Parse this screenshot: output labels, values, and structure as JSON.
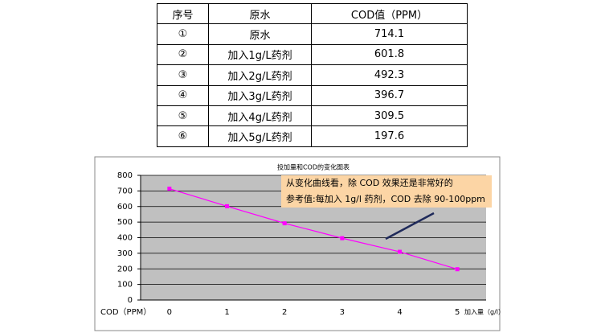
{
  "table": {
    "header": [
      "序号",
      "原水",
      "COD值（PPM）"
    ],
    "rows": [
      [
        "①",
        "原水",
        "714.1"
      ],
      [
        "②",
        "加入1g/L药剂",
        "601.8"
      ],
      [
        "③",
        "加入2g/L药剂",
        "492.3"
      ],
      [
        "④",
        "加入3g/L药剂",
        "396.7"
      ],
      [
        "⑤",
        "加入4g/L药剂",
        "309.5"
      ],
      [
        "⑥",
        "加入5g/L药剂",
        "197.6"
      ]
    ]
  },
  "chart_data": {
    "type": "line",
    "title": "投加量和COD的变化图表",
    "x": [
      0,
      1,
      2,
      3,
      4,
      5
    ],
    "values": [
      714.1,
      601.8,
      492.3,
      396.7,
      309.5,
      197.6
    ],
    "color": "#ff00ff",
    "xlim": [
      -0.5,
      5.5
    ],
    "xticks": [
      0,
      1,
      2,
      3,
      4,
      5
    ],
    "ylim": [
      0,
      800
    ],
    "yticks": [
      0,
      100,
      200,
      300,
      400,
      500,
      600,
      700,
      800
    ],
    "grid": true,
    "x_label": "加入量（g/l）",
    "y_label": "COD（PPM）",
    "annotations": [
      "从变化曲线看，除 COD 效果还是非常好的",
      "参考值:每加入 1g/l 药剂，COD 去除 90-100ppm"
    ]
  }
}
